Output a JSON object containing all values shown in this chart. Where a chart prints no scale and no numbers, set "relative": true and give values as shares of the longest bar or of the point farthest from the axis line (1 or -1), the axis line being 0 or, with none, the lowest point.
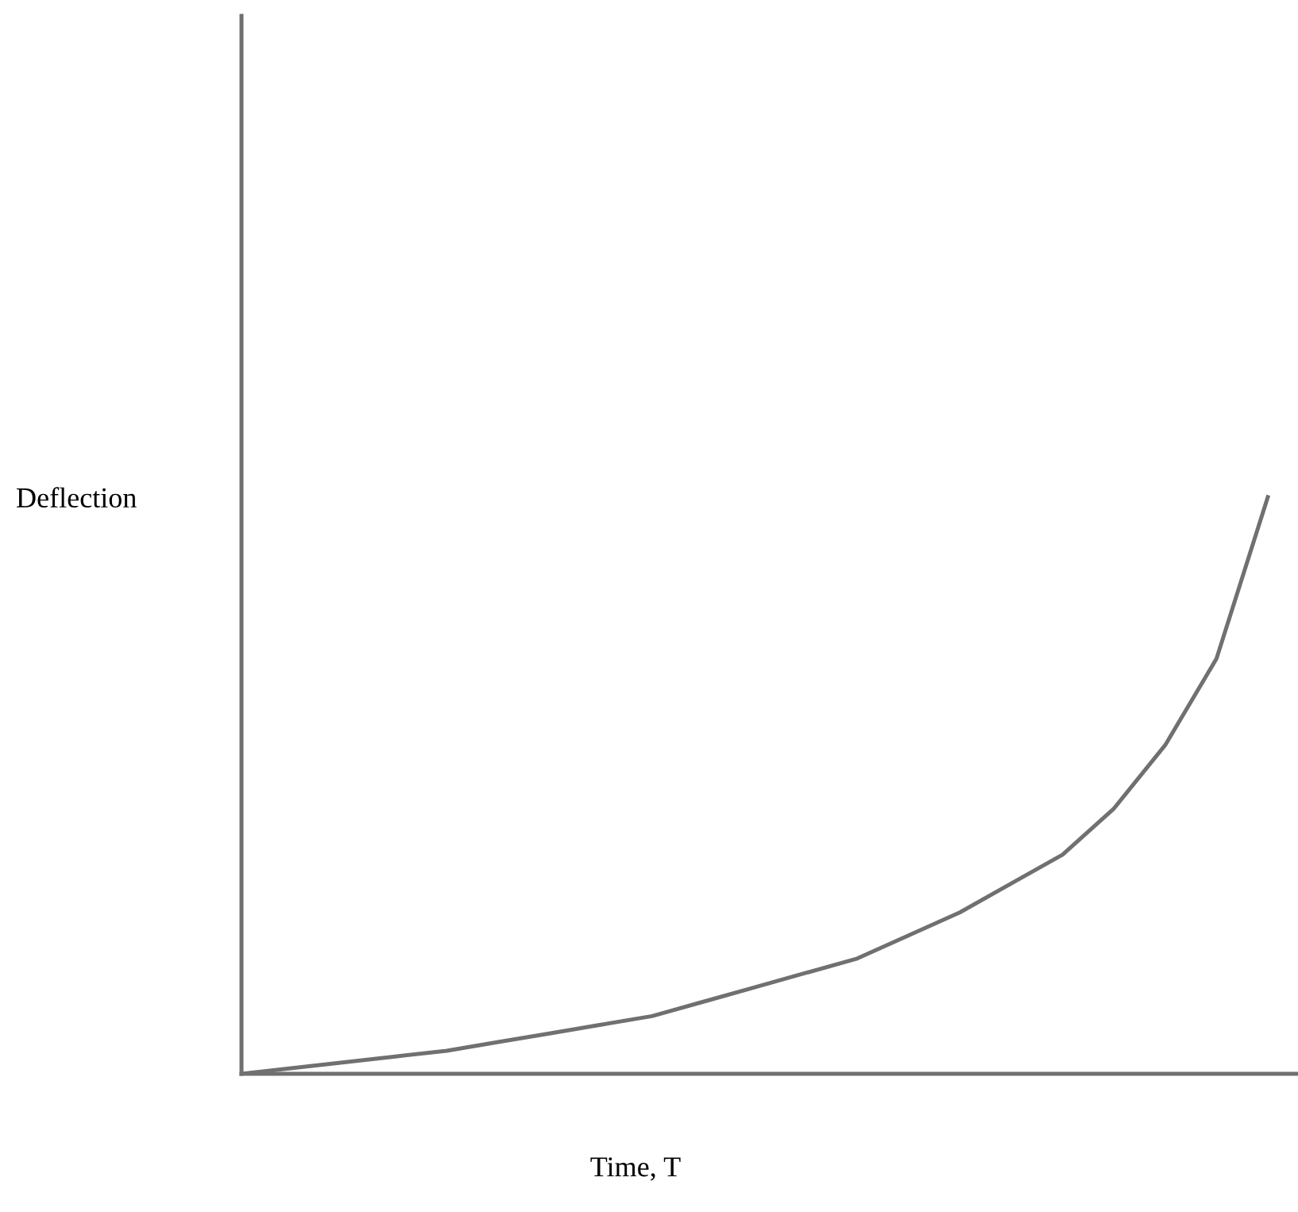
{
  "chart_data": {
    "type": "line",
    "relative": true,
    "xlabel": "Time, T",
    "ylabel": "Deflection",
    "categories": [
      null,
      null,
      null,
      null,
      null,
      null,
      null,
      null,
      null,
      null,
      null,
      null,
      null,
      null,
      null,
      null,
      null,
      null,
      null,
      null,
      null
    ],
    "series": [
      {
        "color": "#707070",
        "values": [
          0,
          0.01,
          0.02,
          0.03,
          0.04,
          0.055,
          0.07,
          0.085,
          0.1,
          0.125,
          0.15,
          0.175,
          0.2,
          0.24,
          0.28,
          0.33,
          0.38,
          0.46,
          0.57,
          0.72,
          1.0
        ]
      }
    ],
    "grid": false,
    "legend": false,
    "marker": "none",
    "line_style": "solid"
  }
}
